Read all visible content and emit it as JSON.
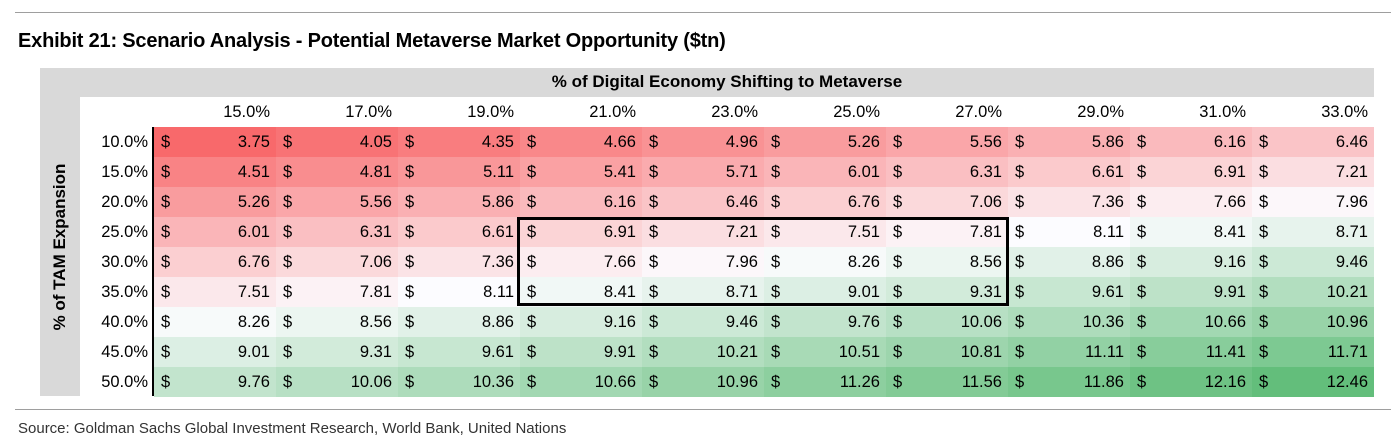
{
  "title": "Exhibit 21: Scenario Analysis - Potential Metaverse Market Opportunity ($tn)",
  "source": "Source: Goldman Sachs Global Investment Research, World Bank, United Nations",
  "chart_data": {
    "type": "table",
    "title": "Exhibit 21: Scenario Analysis - Potential Metaverse Market Opportunity ($tn)",
    "column_header": "% of Digital Economy Shifting to Metaverse",
    "row_header": "% of TAM Expansion",
    "currency_symbol": "$",
    "columns": [
      "15.0%",
      "17.0%",
      "19.0%",
      "21.0%",
      "23.0%",
      "25.0%",
      "27.0%",
      "29.0%",
      "31.0%",
      "33.0%"
    ],
    "rows": [
      "10.0%",
      "15.0%",
      "20.0%",
      "25.0%",
      "30.0%",
      "35.0%",
      "40.0%",
      "45.0%",
      "50.0%"
    ],
    "values": [
      [
        "3.75",
        "4.05",
        "4.35",
        "4.66",
        "4.96",
        "5.26",
        "5.56",
        "5.86",
        "6.16",
        "6.46"
      ],
      [
        "4.51",
        "4.81",
        "5.11",
        "5.41",
        "5.71",
        "6.01",
        "6.31",
        "6.61",
        "6.91",
        "7.21"
      ],
      [
        "5.26",
        "5.56",
        "5.86",
        "6.16",
        "6.46",
        "6.76",
        "7.06",
        "7.36",
        "7.66",
        "7.96"
      ],
      [
        "6.01",
        "6.31",
        "6.61",
        "6.91",
        "7.21",
        "7.51",
        "7.81",
        "8.11",
        "8.41",
        "8.71"
      ],
      [
        "6.76",
        "7.06",
        "7.36",
        "7.66",
        "7.96",
        "8.26",
        "8.56",
        "8.86",
        "9.16",
        "9.46"
      ],
      [
        "7.51",
        "7.81",
        "8.11",
        "8.41",
        "8.71",
        "9.01",
        "9.31",
        "9.61",
        "9.91",
        "10.21"
      ],
      [
        "8.26",
        "8.56",
        "8.86",
        "9.16",
        "9.46",
        "9.76",
        "10.06",
        "10.36",
        "10.66",
        "10.96"
      ],
      [
        "9.01",
        "9.31",
        "9.61",
        "9.91",
        "10.21",
        "10.51",
        "10.81",
        "11.11",
        "11.41",
        "11.71"
      ],
      [
        "9.76",
        "10.06",
        "10.36",
        "10.66",
        "10.96",
        "11.26",
        "11.56",
        "11.86",
        "12.16",
        "12.46"
      ]
    ],
    "highlight": {
      "rows": [
        "25.0%",
        "30.0%",
        "35.0%"
      ],
      "columns": [
        "21.0%",
        "23.0%",
        "25.0%",
        "27.0%"
      ]
    },
    "color_scale": {
      "low": "#f8696b",
      "mid": "#fcfcff",
      "high": "#63be7b"
    }
  }
}
